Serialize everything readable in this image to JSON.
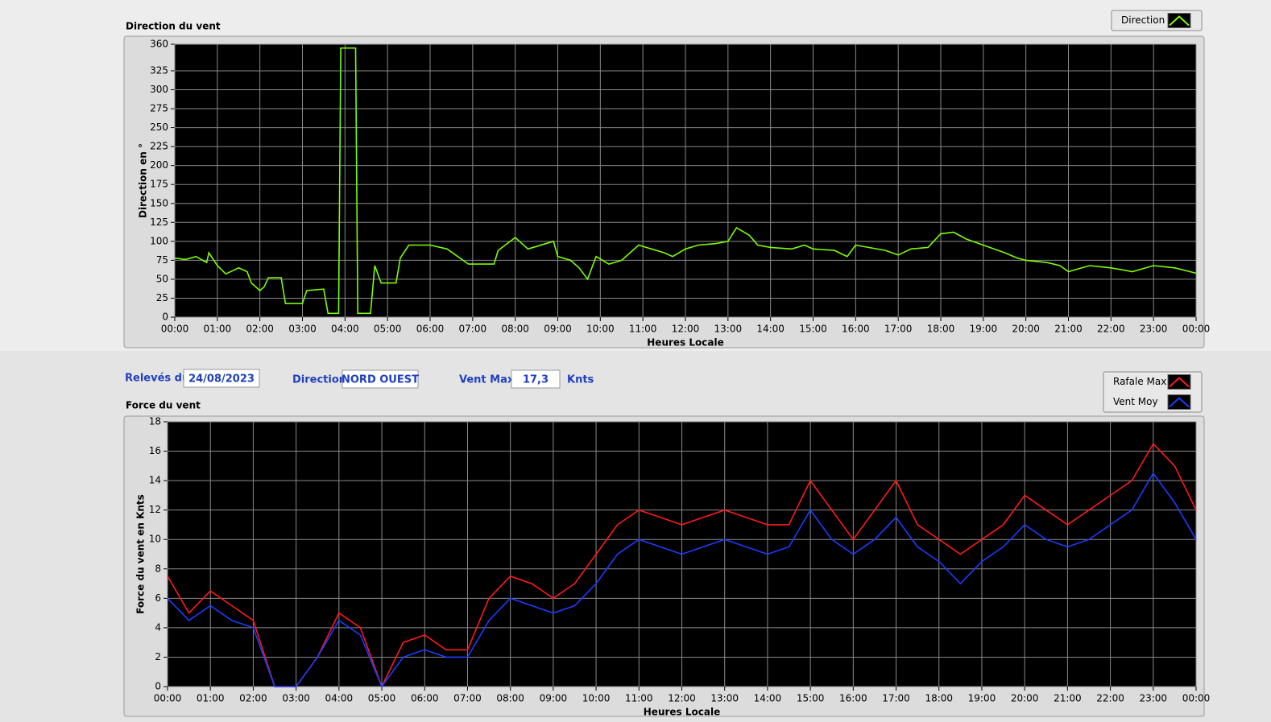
{
  "chart_data": [
    {
      "type": "line",
      "title": "Direction du vent",
      "ylabel": "Direction en °",
      "xlabel": "Heures Locale",
      "xlim": [
        0,
        24
      ],
      "ylim": [
        0,
        360
      ],
      "yticks": [
        0,
        25,
        50,
        75,
        100,
        125,
        150,
        175,
        200,
        225,
        250,
        275,
        300,
        325,
        360
      ],
      "xticks": [
        {
          "value": 0,
          "label": "00:00"
        },
        {
          "value": 1,
          "label": "01:00"
        },
        {
          "value": 2,
          "label": "02:00"
        },
        {
          "value": 3,
          "label": "03:00"
        },
        {
          "value": 4,
          "label": "04:00"
        },
        {
          "value": 5,
          "label": "05:00"
        },
        {
          "value": 6,
          "label": "06:00"
        },
        {
          "value": 7,
          "label": "07:00"
        },
        {
          "value": 8,
          "label": "08:00"
        },
        {
          "value": 9,
          "label": "09:00"
        },
        {
          "value": 10,
          "label": "10:00"
        },
        {
          "value": 11,
          "label": "11:00"
        },
        {
          "value": 12,
          "label": "12:00"
        },
        {
          "value": 13,
          "label": "13:00"
        },
        {
          "value": 14,
          "label": "14:00"
        },
        {
          "value": 15,
          "label": "15:00"
        },
        {
          "value": 16,
          "label": "16:00"
        },
        {
          "value": 17,
          "label": "17:00"
        },
        {
          "value": 18,
          "label": "18:00"
        },
        {
          "value": 19,
          "label": "19:00"
        },
        {
          "value": 20,
          "label": "20:00"
        },
        {
          "value": 21,
          "label": "21:00"
        },
        {
          "value": 22,
          "label": "22:00"
        },
        {
          "value": 23,
          "label": "23:00"
        },
        {
          "value": 24,
          "label": "00:00"
        }
      ],
      "grid": true,
      "x": [
        0,
        0.25,
        0.5,
        0.75,
        0.8,
        1.0,
        1.2,
        1.5,
        1.7,
        1.8,
        2.0,
        2.1,
        2.2,
        2.5,
        2.6,
        3.0,
        3.1,
        3.5,
        3.6,
        3.85,
        3.9,
        4.25,
        4.3,
        4.6,
        4.7,
        4.85,
        5.2,
        5.3,
        5.5,
        6.0,
        6.4,
        6.9,
        7.5,
        7.6,
        8.0,
        8.3,
        8.9,
        9.0,
        9.3,
        9.5,
        9.7,
        9.9,
        10.2,
        10.5,
        10.9,
        11.2,
        11.5,
        11.7,
        12.0,
        12.3,
        12.7,
        13.0,
        13.2,
        13.5,
        13.7,
        14.0,
        14.5,
        14.8,
        15.0,
        15.5,
        15.8,
        16.0,
        16.3,
        16.7,
        17.0,
        17.3,
        17.7,
        18.0,
        18.3,
        18.6,
        19.0,
        19.5,
        19.8,
        20.0,
        20.5,
        20.8,
        21.0,
        21.5,
        22.0,
        22.5,
        23.0,
        23.5,
        24.0
      ],
      "series": [
        {
          "name": "Direction",
          "color": "#7cfc00",
          "values": [
            78,
            76,
            80,
            72,
            85,
            68,
            57,
            65,
            60,
            45,
            35,
            40,
            52,
            52,
            18,
            18,
            35,
            37,
            5,
            5,
            355,
            355,
            5,
            5,
            68,
            45,
            45,
            78,
            95,
            95,
            90,
            70,
            70,
            88,
            105,
            90,
            100,
            80,
            75,
            65,
            50,
            80,
            70,
            75,
            95,
            90,
            85,
            80,
            90,
            95,
            97,
            100,
            118,
            108,
            95,
            92,
            90,
            95,
            90,
            88,
            80,
            95,
            92,
            88,
            82,
            90,
            92,
            110,
            112,
            103,
            95,
            85,
            78,
            75,
            72,
            68,
            60,
            68,
            65,
            60,
            68,
            65,
            58
          ]
        }
      ]
    },
    {
      "type": "line",
      "title": "Force du vent",
      "ylabel": "Force du vent en Knts",
      "xlabel": "Heures Locale",
      "xlim": [
        0,
        24
      ],
      "ylim": [
        0,
        18
      ],
      "yticks": [
        0,
        2,
        4,
        6,
        8,
        10,
        12,
        14,
        16,
        18
      ],
      "xticks": [
        {
          "value": 0,
          "label": "00:00"
        },
        {
          "value": 1,
          "label": "01:00"
        },
        {
          "value": 2,
          "label": "02:00"
        },
        {
          "value": 3,
          "label": "03:00"
        },
        {
          "value": 4,
          "label": "04:00"
        },
        {
          "value": 5,
          "label": "05:00"
        },
        {
          "value": 6,
          "label": "06:00"
        },
        {
          "value": 7,
          "label": "07:00"
        },
        {
          "value": 8,
          "label": "08:00"
        },
        {
          "value": 9,
          "label": "09:00"
        },
        {
          "value": 10,
          "label": "10:00"
        },
        {
          "value": 11,
          "label": "11:00"
        },
        {
          "value": 12,
          "label": "12:00"
        },
        {
          "value": 13,
          "label": "13:00"
        },
        {
          "value": 14,
          "label": "14:00"
        },
        {
          "value": 15,
          "label": "15:00"
        },
        {
          "value": 16,
          "label": "16:00"
        },
        {
          "value": 17,
          "label": "17:00"
        },
        {
          "value": 18,
          "label": "18:00"
        },
        {
          "value": 19,
          "label": "19:00"
        },
        {
          "value": 20,
          "label": "20:00"
        },
        {
          "value": 21,
          "label": "21:00"
        },
        {
          "value": 22,
          "label": "22:00"
        },
        {
          "value": 23,
          "label": "23:00"
        },
        {
          "value": 24,
          "label": "00:00"
        }
      ],
      "grid": true,
      "x": [
        0,
        0.5,
        1,
        1.5,
        2,
        2.5,
        3,
        3.5,
        4,
        4.5,
        5,
        5.5,
        6,
        6.5,
        7,
        7.5,
        8,
        8.5,
        9,
        9.5,
        10,
        10.5,
        11,
        11.5,
        12,
        12.5,
        13,
        13.5,
        14,
        14.5,
        15,
        15.5,
        16,
        16.5,
        17,
        17.5,
        18,
        18.5,
        19,
        19.5,
        20,
        20.5,
        21,
        21.5,
        22,
        22.5,
        23,
        23.5,
        24
      ],
      "series": [
        {
          "name": "Rafale Max",
          "color": "#ff1a1a",
          "values": [
            7.5,
            5,
            6.5,
            5.5,
            4.5,
            0,
            0,
            2,
            5,
            4,
            0,
            3,
            3.5,
            2.5,
            2.5,
            6,
            7.5,
            7,
            6,
            7,
            9,
            11,
            12,
            11.5,
            11,
            11.5,
            12,
            11.5,
            11,
            11,
            14,
            12,
            10,
            12,
            14,
            11,
            10,
            9,
            10,
            11,
            13,
            12,
            11,
            12,
            13,
            14,
            16.5,
            15,
            12
          ]
        },
        {
          "name": "Vent Moy",
          "color": "#1a3cff",
          "values": [
            6,
            4.5,
            5.5,
            4.5,
            4,
            0,
            0,
            2,
            4.5,
            3.5,
            0,
            2,
            2.5,
            2,
            2,
            4.5,
            6,
            5.5,
            5,
            5.5,
            7,
            9,
            10,
            9.5,
            9,
            9.5,
            10,
            9.5,
            9,
            9.5,
            12,
            10,
            9,
            10,
            11.5,
            9.5,
            8.5,
            7,
            8.5,
            9.5,
            11,
            10,
            9.5,
            10,
            11,
            12,
            14.5,
            12.5,
            10
          ]
        }
      ]
    }
  ],
  "form": {
    "date_label": "Relevés du",
    "date": "24/08/2023",
    "direction_label": "Direction",
    "direction": "NORD OUEST",
    "max_label": "Vent Max",
    "max": "17,3",
    "unit": "Knts"
  }
}
